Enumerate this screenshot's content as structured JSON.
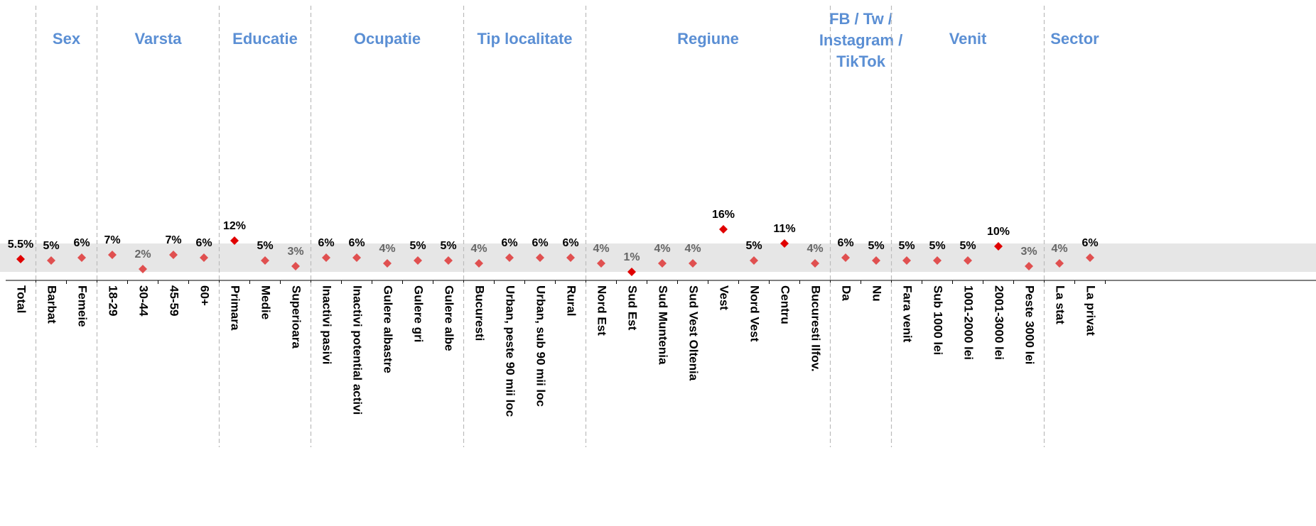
{
  "chart_data": {
    "type": "dot",
    "ylim": [
      0,
      96
    ],
    "band": [
      1,
      11
    ],
    "band_color": "#e6e6e6",
    "header_color": "#5b8fd4",
    "groups": [
      {
        "label": null,
        "categories": [
          "Total"
        ],
        "values": [
          5.5
        ],
        "value_labels": [
          "5.5%"
        ],
        "label_colors": [
          "#000"
        ],
        "colors": [
          "#e00000"
        ]
      },
      {
        "label": "Sex",
        "categories": [
          "Barbat",
          "Femeie"
        ],
        "values": [
          5,
          6
        ],
        "value_labels": [
          "5%",
          "6%"
        ],
        "label_colors": [
          "#000",
          "#000"
        ],
        "colors": [
          "#e05050",
          "#e05050"
        ]
      },
      {
        "label": "Varsta",
        "categories": [
          "18-29",
          "30-44",
          "45-59",
          "60+"
        ],
        "values": [
          7,
          2,
          7,
          6
        ],
        "value_labels": [
          "7%",
          "2%",
          "7%",
          "6%"
        ],
        "label_colors": [
          "#000",
          "#666",
          "#000",
          "#000"
        ],
        "colors": [
          "#e05050",
          "#e05050",
          "#e05050",
          "#e05050"
        ]
      },
      {
        "label": "Educatie",
        "categories": [
          "Primara",
          "Medie",
          "Superioara"
        ],
        "values": [
          12,
          5,
          3
        ],
        "value_labels": [
          "12%",
          "5%",
          "3%"
        ],
        "label_colors": [
          "#000",
          "#000",
          "#666"
        ],
        "colors": [
          "#e00000",
          "#e05050",
          "#e05050"
        ]
      },
      {
        "label": "Ocupatie",
        "categories": [
          "Inactivi pasivi",
          "Inactivi potential activi",
          "Gulere albastre",
          "Gulere gri",
          "Gulere albe"
        ],
        "values": [
          6,
          6,
          4,
          5,
          5
        ],
        "value_labels": [
          "6%",
          "6%",
          "4%",
          "5%",
          "5%"
        ],
        "label_colors": [
          "#000",
          "#000",
          "#666",
          "#000",
          "#000"
        ],
        "colors": [
          "#e05050",
          "#e05050",
          "#e05050",
          "#e05050",
          "#e05050"
        ]
      },
      {
        "label": "Tip localitate",
        "categories": [
          "Bucuresti",
          "Urban, peste 90 mii loc",
          "Urban, sub 90 mii loc",
          "Rural"
        ],
        "values": [
          4,
          6,
          6,
          6
        ],
        "value_labels": [
          "4%",
          "6%",
          "6%",
          "6%"
        ],
        "label_colors": [
          "#666",
          "#000",
          "#000",
          "#000"
        ],
        "colors": [
          "#e05050",
          "#e05050",
          "#e05050",
          "#e05050"
        ]
      },
      {
        "label": "Regiune",
        "categories": [
          "Nord Est",
          "Sud Est",
          "Sud Muntenia",
          "Sud Vest Oltenia",
          "Vest",
          "Nord Vest",
          "Centru",
          "Bucuresti Ilfov."
        ],
        "values": [
          4,
          1,
          4,
          4,
          16,
          5,
          11,
          4
        ],
        "value_labels": [
          "4%",
          "1%",
          "4%",
          "4%",
          "16%",
          "5%",
          "11%",
          "4%"
        ],
        "label_colors": [
          "#666",
          "#666",
          "#666",
          "#666",
          "#000",
          "#000",
          "#000",
          "#666"
        ],
        "colors": [
          "#e05050",
          "#e00000",
          "#e05050",
          "#e05050",
          "#e00000",
          "#e05050",
          "#e00000",
          "#e05050"
        ]
      },
      {
        "label": [
          "FB / Tw /",
          "Instagram /",
          "TikTok"
        ],
        "categories": [
          "Da",
          "Nu"
        ],
        "values": [
          6,
          5
        ],
        "value_labels": [
          "6%",
          "5%"
        ],
        "label_colors": [
          "#000",
          "#000"
        ],
        "colors": [
          "#e05050",
          "#e05050"
        ]
      },
      {
        "label": "Venit",
        "categories": [
          "Fara venit",
          "Sub 1000 lei",
          "1001-2000 lei",
          "2001-3000 lei",
          "Peste 3000 lei"
        ],
        "values": [
          5,
          5,
          5,
          10,
          3
        ],
        "value_labels": [
          "5%",
          "5%",
          "5%",
          "10%",
          "3%"
        ],
        "label_colors": [
          "#000",
          "#000",
          "#000",
          "#000",
          "#666"
        ],
        "colors": [
          "#e05050",
          "#e05050",
          "#e05050",
          "#e00000",
          "#e05050"
        ]
      },
      {
        "label": "Sector",
        "categories": [
          "La stat",
          "La privat"
        ],
        "values": [
          4,
          6
        ],
        "value_labels": [
          "4%",
          "6%"
        ],
        "label_colors": [
          "#666",
          "#000"
        ],
        "colors": [
          "#e05050",
          "#e05050"
        ]
      }
    ]
  }
}
